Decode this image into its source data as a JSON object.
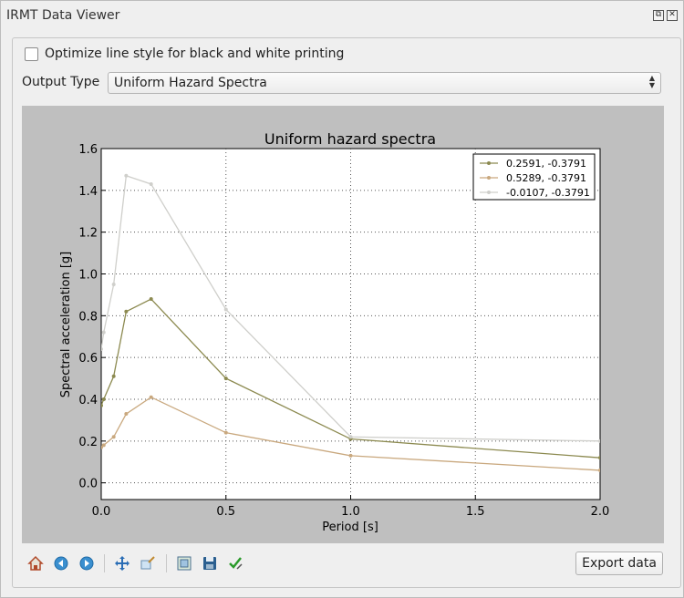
{
  "window": {
    "title": "IRMT Data Viewer"
  },
  "options": {
    "bw_label": "Optimize line style for black and white printing",
    "bw_checked": false
  },
  "output_type": {
    "label": "Output Type",
    "value": "Uniform Hazard Spectra"
  },
  "toolbar": {
    "export_label": "Export data",
    "icons": [
      "home-icon",
      "back-icon",
      "forward-icon",
      "pan-icon",
      "zoom-icon",
      "subplots-icon",
      "save-icon",
      "edit-icon"
    ]
  },
  "chart_data": {
    "type": "line",
    "title": "Uniform hazard spectra",
    "xlabel": "Period [s]",
    "ylabel": "Spectral acceleration [g]",
    "xlim": [
      0.0,
      2.0
    ],
    "ylim": [
      -0.08,
      1.6
    ],
    "xticks": [
      "0.0",
      "0.5",
      "1.0",
      "1.5",
      "2.0"
    ],
    "yticks": [
      "0.0",
      "0.2",
      "0.4",
      "0.6",
      "0.8",
      "1.0",
      "1.2",
      "1.4",
      "1.6"
    ],
    "grid": true,
    "legend_position": "top-right",
    "series": [
      {
        "name": "0.2591, -0.3791",
        "color": "#8c8a50",
        "x": [
          0.0,
          0.01,
          0.05,
          0.1,
          0.2,
          0.5,
          1.0,
          2.0
        ],
        "y": [
          0.37,
          0.4,
          0.51,
          0.82,
          0.88,
          0.5,
          0.21,
          0.12
        ]
      },
      {
        "name": "0.5289, -0.3791",
        "color": "#c9a87e",
        "x": [
          0.0,
          0.01,
          0.05,
          0.1,
          0.2,
          0.5,
          1.0,
          2.0
        ],
        "y": [
          0.17,
          0.18,
          0.22,
          0.33,
          0.41,
          0.24,
          0.13,
          0.06
        ]
      },
      {
        "name": "-0.0107, -0.3791",
        "color": "#cfcfcb",
        "x": [
          0.0,
          0.01,
          0.05,
          0.1,
          0.2,
          0.5,
          1.0,
          2.0
        ],
        "y": [
          0.64,
          0.72,
          0.95,
          1.47,
          1.43,
          0.83,
          0.22,
          0.2
        ]
      }
    ]
  }
}
